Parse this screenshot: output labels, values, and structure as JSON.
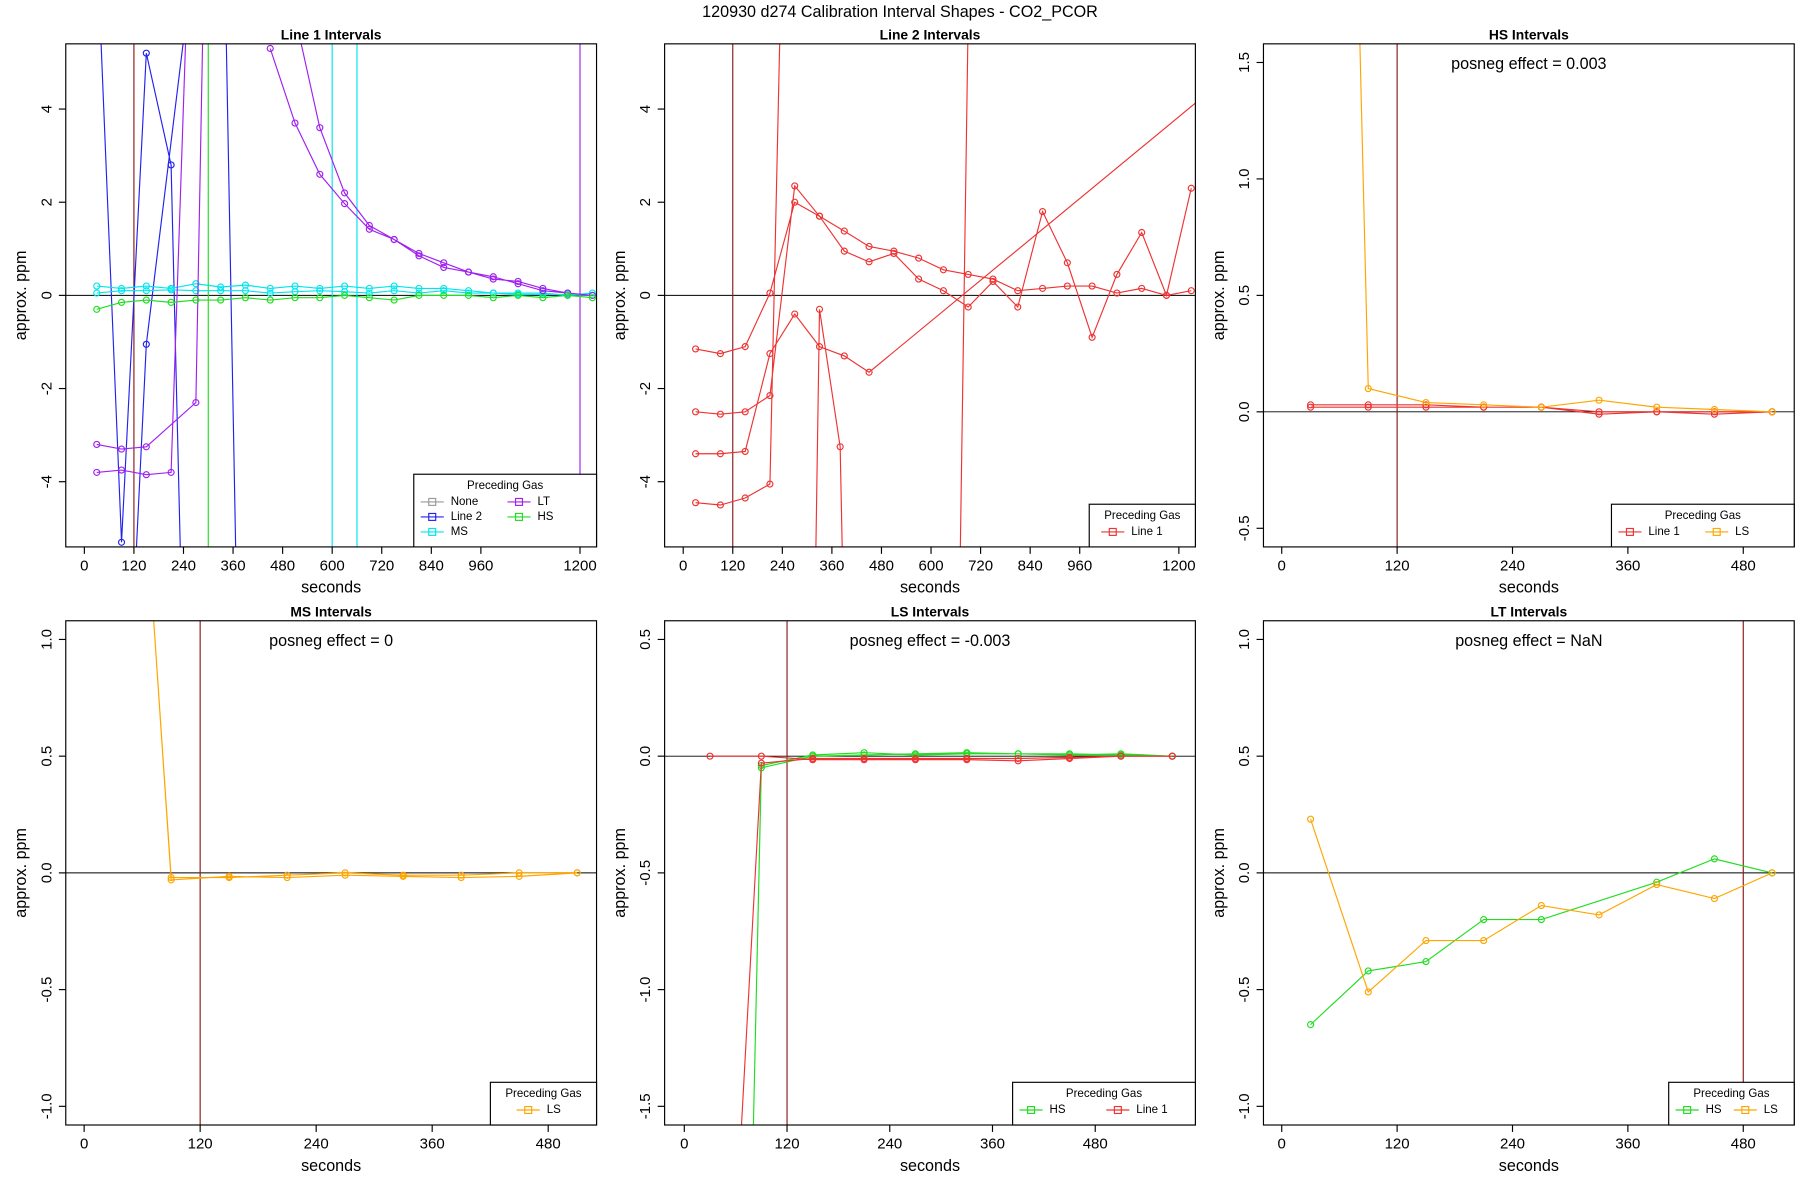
{
  "title": "120930  d274   Calibration Interval Shapes - CO2_PCOR",
  "chart_data": [
    {
      "type": "line",
      "title": "Line 1 Intervals",
      "xlabel": "seconds",
      "ylabel": "approx. ppm",
      "xlim": [
        -45,
        1240
      ],
      "ylim": [
        -5.4,
        5.4
      ],
      "xticks": [
        0,
        120,
        240,
        360,
        480,
        600,
        720,
        840,
        960,
        1200
      ],
      "yticks": [
        -4,
        -2,
        0,
        2,
        4
      ],
      "hline": 0,
      "vlines": [
        {
          "value": 120,
          "color": "#8b1a1a"
        },
        {
          "value": 300,
          "color": "#22dd22"
        },
        {
          "value": 600,
          "color": "#00e5ee"
        },
        {
          "value": 660,
          "color": "#00e5ee"
        },
        {
          "value": 1200,
          "color": "#a020f0"
        }
      ],
      "legend_title": "Preceding Gas",
      "legend_position": "bottom-right",
      "series": [
        {
          "name": "None",
          "color": "#999999",
          "x": [],
          "values": []
        },
        {
          "name": "Line 2",
          "color": "#2222ee",
          "x": [
            10,
            90,
            150,
            210,
            250,
            null,
            90,
            150,
            330,
            380
          ],
          "values": [
            12,
            -5.3,
            5.2,
            2.8,
            -12,
            null,
            -12,
            -1.05,
            12,
            -12
          ]
        },
        {
          "name": "MS",
          "color": "#00e5ee",
          "x": [
            30,
            90,
            150,
            210,
            270,
            330,
            390,
            450,
            510,
            570,
            630,
            690,
            750,
            810,
            870,
            930,
            990,
            1050,
            1110,
            1170,
            1230,
            null,
            30,
            90,
            150,
            210,
            270,
            330,
            390,
            450,
            510,
            570,
            630,
            690,
            750,
            810,
            870,
            930,
            990,
            1050,
            1110,
            1170,
            1230
          ],
          "values": [
            0.2,
            0.15,
            0.2,
            0.15,
            0.25,
            0.18,
            0.22,
            0.15,
            0.2,
            0.15,
            0.2,
            0.15,
            0.2,
            0.15,
            0.15,
            0.1,
            0.05,
            0.05,
            0.05,
            0.0,
            0.05,
            null,
            0.05,
            0.1,
            0.1,
            0.12,
            0.1,
            0.1,
            0.1,
            0.05,
            0.08,
            0.1,
            0.08,
            0.05,
            0.1,
            0.05,
            0.1,
            0.05,
            0.05,
            0.02,
            0.02,
            0.02,
            0.0
          ]
        },
        {
          "name": "LT",
          "color": "#a020f0",
          "x": [
            30,
            90,
            150,
            270,
            300,
            null,
            30,
            90,
            150,
            210,
            270,
            null,
            450,
            510,
            570,
            630,
            690,
            750,
            810,
            870,
            930,
            990,
            1050,
            1110,
            1170,
            1230,
            null,
            510,
            570,
            630,
            690,
            750,
            810,
            870,
            930,
            990,
            1050,
            1110,
            1170
          ],
          "values": [
            -3.2,
            -3.3,
            -3.25,
            -2.3,
            12,
            null,
            -3.8,
            -3.75,
            -3.85,
            -3.8,
            12,
            null,
            5.3,
            3.7,
            2.6,
            1.97,
            1.42,
            1.2,
            0.9,
            0.7,
            0.5,
            0.35,
            0.3,
            0.15,
            0.05,
            0.0,
            null,
            6,
            3.6,
            2.2,
            1.5,
            1.2,
            0.85,
            0.6,
            0.5,
            0.4,
            0.25,
            0.1,
            0.05
          ]
        },
        {
          "name": "HS",
          "color": "#22dd22",
          "x": [
            30,
            90,
            150,
            210,
            270,
            330,
            390,
            450,
            510,
            570,
            630,
            690,
            750,
            810,
            870,
            930,
            990,
            1050,
            1110,
            1170,
            1230
          ],
          "values": [
            -0.3,
            -0.15,
            -0.1,
            -0.15,
            -0.1,
            -0.1,
            -0.05,
            -0.1,
            -0.05,
            -0.05,
            0,
            -0.05,
            -0.1,
            0,
            0,
            0,
            -0.05,
            0,
            -0.05,
            0,
            -0.05
          ]
        }
      ]
    },
    {
      "type": "line",
      "title": "Line 2 Intervals",
      "xlabel": "seconds",
      "ylabel": "approx. ppm",
      "xlim": [
        -45,
        1240
      ],
      "ylim": [
        -5.4,
        5.4
      ],
      "xticks": [
        0,
        120,
        240,
        360,
        480,
        600,
        720,
        840,
        960,
        1200
      ],
      "yticks": [
        -4,
        -2,
        0,
        2,
        4
      ],
      "hline": 0,
      "vlines": [
        {
          "value": 120,
          "color": "#8b1a1a"
        }
      ],
      "legend_title": "Preceding Gas",
      "legend_position": "bottom-right",
      "series": [
        {
          "name": "Line 1",
          "color": "#ee3333",
          "x": [
            30,
            90,
            150,
            210,
            270,
            330,
            390,
            450,
            510,
            570,
            630,
            690,
            750,
            810,
            870,
            930,
            990,
            1050,
            1110,
            1170,
            1230,
            null,
            30,
            90,
            150,
            210,
            270,
            330,
            390,
            450,
            510,
            570,
            630,
            690,
            750,
            810,
            870,
            930,
            990,
            1050,
            1110,
            1170,
            1230,
            null,
            30,
            90,
            150,
            210,
            270,
            330,
            390,
            450,
            1250,
            null,
            30,
            90,
            150,
            210,
            250,
            null,
            310,
            330,
            380,
            400,
            null,
            660,
            700
          ],
          "values": [
            -1.15,
            -1.25,
            -1.1,
            0.05,
            2.0,
            1.7,
            1.38,
            1.05,
            0.95,
            0.8,
            0.55,
            0.45,
            0.35,
            0.1,
            0.15,
            0.2,
            0.2,
            0.05,
            0.15,
            0.0,
            0.1,
            null,
            -2.5,
            -2.55,
            -2.5,
            -2.15,
            2.35,
            1.7,
            0.95,
            0.72,
            0.9,
            0.35,
            0.1,
            -0.25,
            0.3,
            -0.25,
            1.8,
            0.7,
            -0.9,
            0.45,
            1.35,
            0.0,
            2.3,
            null,
            -3.4,
            -3.4,
            -3.35,
            -1.25,
            -0.4,
            -1.1,
            -1.3,
            -1.65,
            4.2,
            null,
            -4.45,
            -4.5,
            -4.35,
            -4.05,
            12,
            null,
            -12,
            -0.3,
            -3.25,
            -12,
            null,
            -12,
            12
          ]
        }
      ]
    },
    {
      "type": "line",
      "title": "HS Intervals",
      "xlabel": "seconds",
      "ylabel": "approx. ppm",
      "xlim": [
        -19,
        533
      ],
      "ylim": [
        -0.58,
        1.58
      ],
      "xticks": [
        0,
        120,
        240,
        360,
        480
      ],
      "yticks": [
        -0.5,
        {
          "value": 0,
          "label": "0.0"
        },
        0.5,
        {
          "value": 1,
          "label": "1.0"
        },
        1.5
      ],
      "hline": 0,
      "annotation": "posneg effect = 0.003",
      "vlines": [
        {
          "value": 120,
          "color": "#8b1a1a"
        }
      ],
      "legend_title": "Preceding Gas",
      "legend_position": "bottom-right",
      "series": [
        {
          "name": "Line 1",
          "color": "#ee3333",
          "x": [
            30,
            90,
            150,
            210,
            270,
            330,
            390,
            450,
            510,
            null,
            30,
            90,
            150,
            210,
            270,
            330,
            390,
            450,
            510
          ],
          "values": [
            0.02,
            0.02,
            0.02,
            0.02,
            0.02,
            0.0,
            0.0,
            0.0,
            0,
            null,
            0.03,
            0.03,
            0.03,
            0.02,
            0.02,
            -0.01,
            0,
            -0.01,
            0
          ]
        },
        {
          "name": "LS",
          "color": "#ffa500",
          "x": [
            80,
            90,
            150,
            210,
            270,
            330,
            390,
            450,
            510
          ],
          "values": [
            1.8,
            0.1,
            0.04,
            0.03,
            0.02,
            0.05,
            0.02,
            0.01,
            0
          ]
        }
      ]
    },
    {
      "type": "line",
      "title": "MS Intervals",
      "xlabel": "seconds",
      "ylabel": "approx. ppm",
      "xlim": [
        -19,
        530
      ],
      "ylim": [
        -1.08,
        1.08
      ],
      "xticks": [
        0,
        120,
        240,
        360,
        480
      ],
      "yticks": [
        {
          "value": -1,
          "label": "-1.0"
        },
        -0.5,
        {
          "value": 0,
          "label": "0.0"
        },
        0.5,
        {
          "value": 1,
          "label": "1.0"
        }
      ],
      "hline": 0,
      "annotation": "posneg effect = 0",
      "vlines": [
        {
          "value": 120,
          "color": "#8b1a1a"
        }
      ],
      "legend_title": "Preceding Gas",
      "legend_position": "bottom-right",
      "series": [
        {
          "name": "LS",
          "color": "#ffa500",
          "x": [
            70,
            90,
            150,
            210,
            270,
            330,
            390,
            450,
            510,
            null,
            70,
            90,
            150,
            210,
            270,
            330,
            390,
            450,
            510
          ],
          "values": [
            1.2,
            -0.02,
            -0.02,
            -0.01,
            0,
            -0.01,
            -0.01,
            0,
            0,
            null,
            1.2,
            -0.03,
            -0.015,
            -0.02,
            -0.01,
            -0.015,
            -0.02,
            -0.015,
            0
          ]
        }
      ]
    },
    {
      "type": "line",
      "title": "LS Intervals",
      "xlabel": "seconds",
      "ylabel": "approx. ppm",
      "xlim": [
        -23,
        597
      ],
      "ylim": [
        -1.58,
        0.58
      ],
      "xticks": [
        0,
        120,
        240,
        360,
        480
      ],
      "yticks": [
        -1.5,
        {
          "value": -1,
          "label": "-1.0"
        },
        -0.5,
        {
          "value": 0,
          "label": "0.0"
        },
        0.5
      ],
      "hline": 0,
      "annotation": "posneg effect = -0.003",
      "vlines": [
        {
          "value": 120,
          "color": "#8b1a1a"
        }
      ],
      "legend_title": "Preceding Gas",
      "legend_position": "bottom-right",
      "series": [
        {
          "name": "HS",
          "color": "#22dd22",
          "x": [
            80,
            90,
            150,
            210,
            270,
            330,
            390,
            450,
            510,
            570,
            null,
            80,
            90,
            150,
            210,
            270,
            330,
            390,
            450,
            510,
            570
          ],
          "values": [
            -1.7,
            -0.04,
            0.005,
            0.015,
            0.005,
            0.01,
            0.01,
            0.005,
            0.01,
            0,
            null,
            -1.7,
            -0.05,
            0.0,
            0.005,
            0.01,
            0.015,
            0.01,
            0.01,
            0.005,
            0
          ]
        },
        {
          "name": "Line 1",
          "color": "#ee3333",
          "x": [
            30,
            90,
            150,
            210,
            270,
            330,
            390,
            450,
            510,
            570,
            null,
            65,
            90,
            150,
            210,
            270,
            330,
            390,
            450,
            510,
            570
          ],
          "values": [
            0,
            0,
            -0.015,
            -0.015,
            -0.015,
            -0.015,
            -0.02,
            -0.01,
            0,
            0,
            null,
            -1.7,
            -0.03,
            -0.01,
            -0.01,
            -0.01,
            -0.01,
            -0.01,
            -0.005,
            0,
            0
          ]
        }
      ]
    },
    {
      "type": "line",
      "title": "LT Intervals",
      "xlabel": "seconds",
      "ylabel": "approx. ppm",
      "xlim": [
        -19,
        533
      ],
      "ylim": [
        -1.08,
        1.08
      ],
      "xticks": [
        0,
        120,
        240,
        360,
        480
      ],
      "yticks": [
        {
          "value": -1,
          "label": "-1.0"
        },
        -0.5,
        {
          "value": 0,
          "label": "0.0"
        },
        0.5,
        {
          "value": 1,
          "label": "1.0"
        }
      ],
      "hline": 0,
      "annotation": "posneg effect = NaN",
      "vlines": [
        {
          "value": 480,
          "color": "#8b1a1a"
        }
      ],
      "legend_title": "Preceding Gas",
      "legend_position": "bottom-right",
      "series": [
        {
          "name": "HS",
          "color": "#22dd22",
          "x": [
            30,
            90,
            150,
            210,
            270,
            390,
            450,
            510
          ],
          "values": [
            -0.65,
            -0.42,
            -0.38,
            -0.2,
            -0.2,
            -0.04,
            0.06,
            0
          ]
        },
        {
          "name": "LS",
          "color": "#ffa500",
          "x": [
            30,
            90,
            150,
            210,
            270,
            330,
            390,
            450,
            510
          ],
          "values": [
            0.23,
            -0.51,
            -0.29,
            -0.29,
            -0.14,
            -0.18,
            -0.05,
            -0.11,
            0
          ]
        }
      ]
    }
  ]
}
